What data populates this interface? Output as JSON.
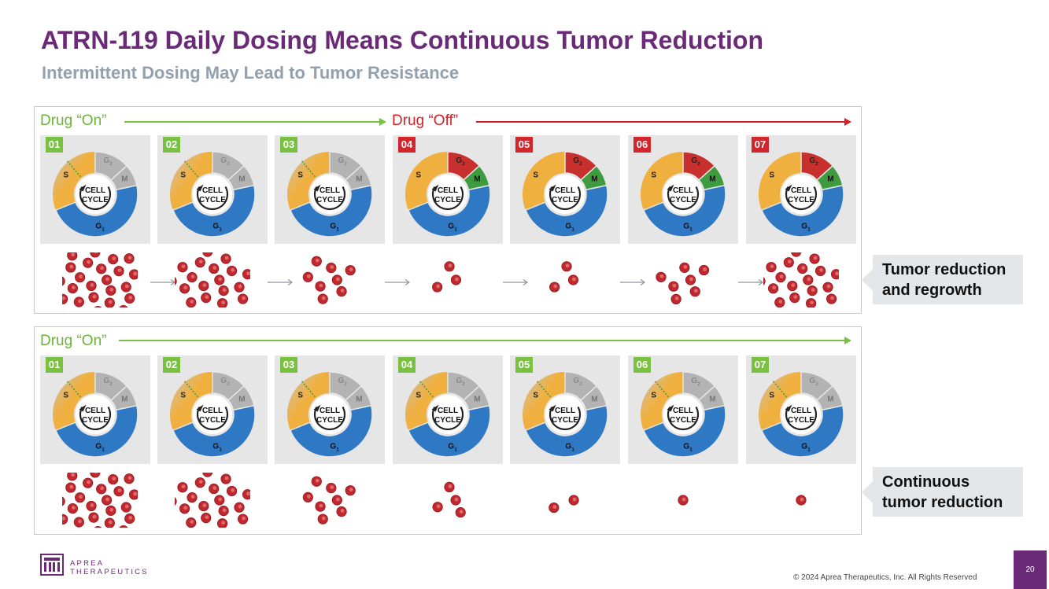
{
  "title": "ATRN-119 Daily Dosing Means Continuous Tumor Reduction",
  "subtitle": "Intermittent Dosing May Lead to Tumor Resistance",
  "colors": {
    "title": "#6b2a78",
    "subtitle": "#93a0ad",
    "drug_on": "#7ac143",
    "drug_off": "#d81f26",
    "phase_s": "#f0b040",
    "phase_g1": "#2f78c4",
    "phase_g2_active": "#c8302d",
    "phase_m_active": "#3e9b3e",
    "phase_inactive": "#b3b3b3",
    "tumor_cell": "#c0282e"
  },
  "cycle": {
    "center_line1": "CELL",
    "center_line2": "CYCLE",
    "g1": "G",
    "g1_sub": "1",
    "g2": "G",
    "g2_sub": "2",
    "s": "S",
    "m": "M"
  },
  "top_panel": {
    "drug_on_label": "Drug “On”",
    "drug_off_label": "Drug “Off”",
    "stages": [
      {
        "num": "01",
        "state": "on"
      },
      {
        "num": "02",
        "state": "on"
      },
      {
        "num": "03",
        "state": "on"
      },
      {
        "num": "04",
        "state": "off"
      },
      {
        "num": "05",
        "state": "off"
      },
      {
        "num": "06",
        "state": "off"
      },
      {
        "num": "07",
        "state": "off"
      }
    ],
    "tumor_cell_counts": [
      26,
      18,
      8,
      3,
      3,
      7,
      18
    ],
    "callout_line1": "Tumor reduction",
    "callout_line2": "and regrowth"
  },
  "bottom_panel": {
    "drug_on_label": "Drug “On”",
    "stages": [
      {
        "num": "01",
        "state": "on"
      },
      {
        "num": "02",
        "state": "on"
      },
      {
        "num": "03",
        "state": "on"
      },
      {
        "num": "04",
        "state": "on"
      },
      {
        "num": "05",
        "state": "on"
      },
      {
        "num": "06",
        "state": "on"
      },
      {
        "num": "07",
        "state": "on"
      }
    ],
    "tumor_cell_counts": [
      26,
      18,
      8,
      4,
      2,
      1,
      1
    ],
    "callout_line1": "Continuous",
    "callout_line2": "tumor reduction"
  },
  "footer": {
    "logo_line1": "APREA",
    "logo_line2": "THERAPEUTICS",
    "copyright": "© 2024 Aprea Therapeutics, Inc. All Rights Reserved",
    "page_number": "20"
  }
}
